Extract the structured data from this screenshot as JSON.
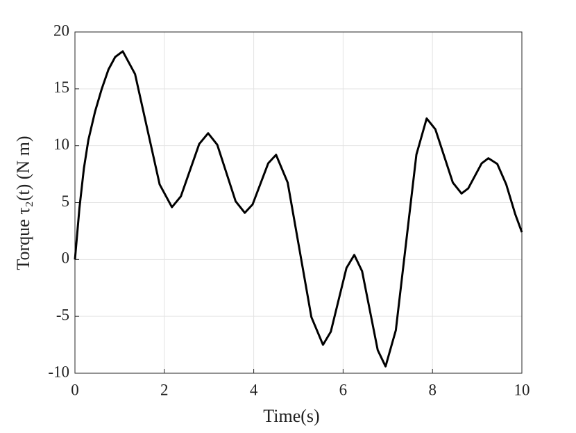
{
  "chart_data": {
    "type": "line",
    "x_label": "Time(s)",
    "y_label": "Torque τ₂(t) (N m)",
    "x": [
      0,
      0.1,
      0.2,
      0.3,
      0.45,
      0.6,
      0.75,
      0.9,
      1.07,
      1.345,
      1.62,
      1.895,
      2.17,
      2.37,
      2.575,
      2.78,
      2.98,
      3.185,
      3.39,
      3.595,
      3.8,
      3.975,
      4.15,
      4.325,
      4.5,
      4.76,
      5.025,
      5.29,
      5.55,
      5.725,
      5.9,
      6.075,
      6.25,
      6.425,
      6.6,
      6.775,
      6.95,
      7.18,
      7.41,
      7.64,
      7.87,
      8.065,
      8.26,
      8.455,
      8.65,
      8.8,
      8.95,
      9.1,
      9.25,
      9.45,
      9.65,
      9.85,
      10
    ],
    "series": [
      {
        "color": "#000000",
        "values": [
          0,
          4.5,
          8,
          10.5,
          13,
          15,
          16.7,
          17.8,
          18.3,
          16.3,
          11.45,
          6.6,
          4.6,
          5.55,
          7.85,
          10.15,
          11.1,
          10.08,
          7.6,
          5.12,
          4.1,
          4.84,
          6.65,
          8.46,
          9.2,
          6.76,
          0.85,
          -5.06,
          -7.5,
          -6.35,
          -3.55,
          -0.75,
          0.4,
          -1.03,
          -4.5,
          -7.97,
          -9.4,
          -6.22,
          1.5,
          9.22,
          12.4,
          11.44,
          9.1,
          6.76,
          5.8,
          6.25,
          7.35,
          8.45,
          8.9,
          8.4,
          6.6,
          4.0,
          2.4
        ]
      }
    ],
    "xlim": [
      0,
      10
    ],
    "xticks": [
      0,
      2,
      4,
      6,
      8,
      10
    ],
    "ylim": [
      -10,
      20
    ],
    "yticks": [
      -10,
      -5,
      0,
      5,
      10,
      15,
      20
    ],
    "grid": true
  }
}
